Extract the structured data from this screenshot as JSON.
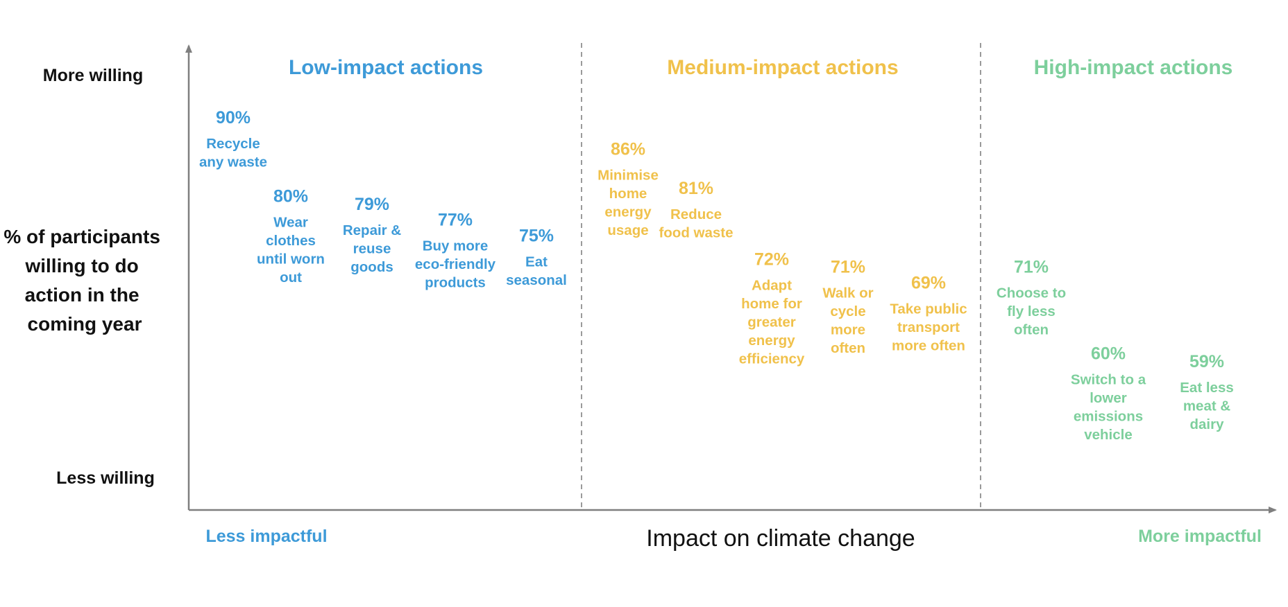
{
  "colors": {
    "low": "#3d9ad8",
    "medium": "#f0c14b",
    "high": "#7dcf9c",
    "axis": "#7f7f7f",
    "divider": "#9a9a9a",
    "text": "#111111"
  },
  "chart_data": {
    "type": "scatter",
    "title": "",
    "xlabel": "Impact on climate change",
    "ylabel": [
      "% of participants",
      "willing to do",
      "action in the",
      "coming year"
    ],
    "y_top_label": "More willing",
    "y_bottom_label": "Less willing",
    "x_left_label": "Less impactful",
    "x_right_label": "More impactful",
    "ylim": [
      50,
      95
    ],
    "grid": false,
    "groups": [
      {
        "key": "low",
        "heading": "Low-impact actions",
        "points": [
          {
            "value": "90%",
            "y": 90,
            "label": [
              "Recycle",
              "any waste"
            ]
          },
          {
            "value": "80%",
            "y": 80,
            "label": [
              "Wear",
              "clothes",
              "until worn",
              "out"
            ]
          },
          {
            "value": "79%",
            "y": 79,
            "label": [
              "Repair &",
              "reuse",
              "goods"
            ]
          },
          {
            "value": "77%",
            "y": 77,
            "label": [
              "Buy more",
              "eco-friendly",
              "products"
            ]
          },
          {
            "value": "75%",
            "y": 75,
            "label": [
              "Eat",
              "seasonal"
            ]
          }
        ]
      },
      {
        "key": "medium",
        "heading": "Medium-impact actions",
        "points": [
          {
            "value": "86%",
            "y": 86,
            "label": [
              "Minimise",
              "home",
              "energy",
              "usage"
            ]
          },
          {
            "value": "81%",
            "y": 81,
            "label": [
              "Reduce",
              "food waste"
            ]
          },
          {
            "value": "72%",
            "y": 72,
            "label": [
              "Adapt",
              "home for",
              "greater",
              "energy",
              "efficiency"
            ]
          },
          {
            "value": "71%",
            "y": 71,
            "label": [
              "Walk or",
              "cycle",
              "more",
              "often"
            ]
          },
          {
            "value": "69%",
            "y": 69,
            "label": [
              "Take public",
              "transport",
              "more often"
            ]
          }
        ]
      },
      {
        "key": "high",
        "heading": "High-impact actions",
        "points": [
          {
            "value": "71%",
            "y": 71,
            "label": [
              "Choose to",
              "fly less",
              "often"
            ]
          },
          {
            "value": "60%",
            "y": 60,
            "label": [
              "Switch to a",
              "lower",
              "emissions",
              "vehicle"
            ]
          },
          {
            "value": "59%",
            "y": 59,
            "label": [
              "Eat less",
              "meat &",
              "dairy"
            ]
          }
        ]
      }
    ]
  }
}
